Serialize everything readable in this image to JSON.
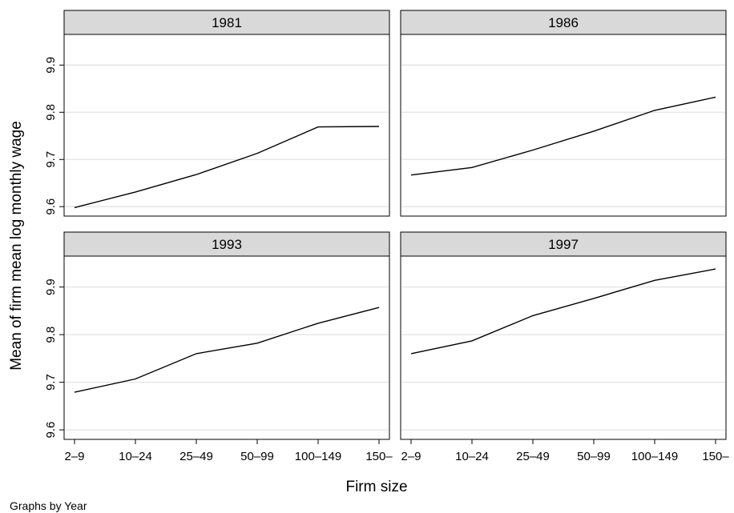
{
  "chart_data": {
    "type": "line",
    "layout": "facet-2x2",
    "xlabel": "Firm size",
    "ylabel": "Mean of firm mean log monthly wage",
    "note": "Graphs by Year",
    "categories": [
      "2–9",
      "10–24",
      "25–49",
      "50–99",
      "100–149",
      "150–"
    ],
    "ylim": [
      9.58,
      9.965
    ],
    "yticks": [
      9.6,
      9.7,
      9.8,
      9.9
    ],
    "ytick_labels": [
      "9.6",
      "9.7",
      "9.8",
      "9.9"
    ],
    "grid": true,
    "line_color": "#000000",
    "panels": [
      {
        "title": "1981",
        "values": [
          9.598,
          9.631,
          9.668,
          9.713,
          9.769,
          9.77
        ]
      },
      {
        "title": "1986",
        "values": [
          9.667,
          9.683,
          9.72,
          9.76,
          9.804,
          9.832
        ]
      },
      {
        "title": "1993",
        "values": [
          9.679,
          9.707,
          9.76,
          9.782,
          9.824,
          9.857
        ]
      },
      {
        "title": "1997",
        "values": [
          9.76,
          9.787,
          9.84,
          9.876,
          9.914,
          9.938
        ]
      }
    ]
  }
}
